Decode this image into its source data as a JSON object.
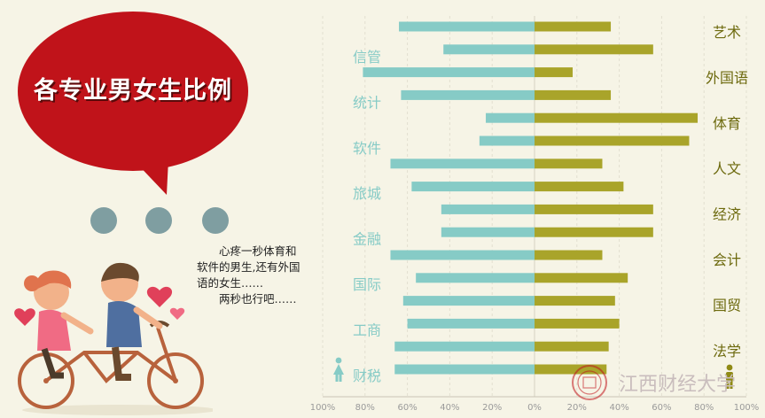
{
  "title": "各专业男女生比例",
  "caption": {
    "line1": "心疼一秒体育和软件的男生,还有外国语的女生……",
    "line2": "两秒也行吧……"
  },
  "watermark": "江西财经大学",
  "colors": {
    "bubble": "#c0131a",
    "male": "#86cbc6",
    "female": "#a9a42a",
    "left_label": "#86cbc6",
    "right_label": "#8f8a14"
  },
  "icons": {
    "male": "man-icon",
    "female": "woman-icon",
    "illustration": "couple-tandem-bike"
  },
  "chart_data": {
    "type": "bar",
    "orientation": "horizontal-diverging",
    "xlim": [
      -100,
      100
    ],
    "x_ticks": [
      "100%",
      "80%",
      "60%",
      "40%",
      "20%",
      "0%",
      "20%",
      "40%",
      "60%",
      "80%",
      "100%"
    ],
    "left_labels": [
      "信管",
      "统计",
      "软件",
      "旅城",
      "金融",
      "国际",
      "工商",
      "财税"
    ],
    "right_labels": [
      "艺术",
      "外国语",
      "体育",
      "人文",
      "经济",
      "会计",
      "国贸",
      "法学"
    ],
    "rows": [
      {
        "left": 64,
        "right": 36
      },
      {
        "left": 43,
        "right": 56
      },
      {
        "left": 81,
        "right": 18
      },
      {
        "left": 63,
        "right": 36
      },
      {
        "left": 23,
        "right": 77
      },
      {
        "left": 26,
        "right": 73
      },
      {
        "left": 68,
        "right": 32
      },
      {
        "left": 58,
        "right": 42
      },
      {
        "left": 44,
        "right": 56
      },
      {
        "left": 44,
        "right": 56
      },
      {
        "left": 68,
        "right": 32
      },
      {
        "left": 56,
        "right": 44
      },
      {
        "left": 62,
        "right": 38
      },
      {
        "left": 60,
        "right": 40
      },
      {
        "left": 66,
        "right": 35
      },
      {
        "left": 66,
        "right": 34
      }
    ]
  }
}
